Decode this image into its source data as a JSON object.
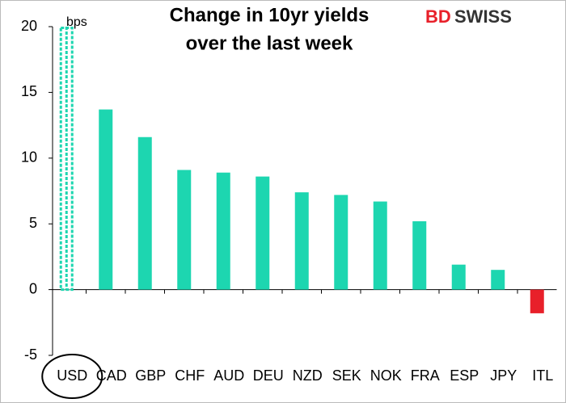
{
  "chart_data": {
    "type": "bar",
    "title_lines": [
      "Change in 10yr yields",
      "over the last week"
    ],
    "annotation": "bps",
    "logo": [
      "BD",
      "SWISS"
    ],
    "categories": [
      "USD",
      "CAD",
      "GBP",
      "CHF",
      "AUD",
      "DEU",
      "NZD",
      "SEK",
      "NOK",
      "FRA",
      "ESP",
      "JPY",
      "ITL"
    ],
    "values": [
      20,
      13.7,
      11.6,
      9.1,
      8.9,
      8.6,
      7.4,
      7.2,
      6.7,
      5.2,
      1.9,
      1.5,
      -1.8
    ],
    "colors": [
      "#1dd6b0",
      "#1dd6b0",
      "#1dd6b0",
      "#1dd6b0",
      "#1dd6b0",
      "#1dd6b0",
      "#1dd6b0",
      "#1dd6b0",
      "#1dd6b0",
      "#1dd6b0",
      "#1dd6b0",
      "#1dd6b0",
      "#e8202a"
    ],
    "bar_styles": [
      "dashed",
      "solid",
      "solid",
      "solid",
      "solid",
      "solid",
      "solid",
      "solid",
      "solid",
      "solid",
      "solid",
      "solid",
      "solid"
    ],
    "circled": [
      0
    ],
    "ylim": [
      -5,
      20
    ],
    "yticks": [
      -5,
      0,
      5,
      10,
      15,
      20
    ]
  }
}
